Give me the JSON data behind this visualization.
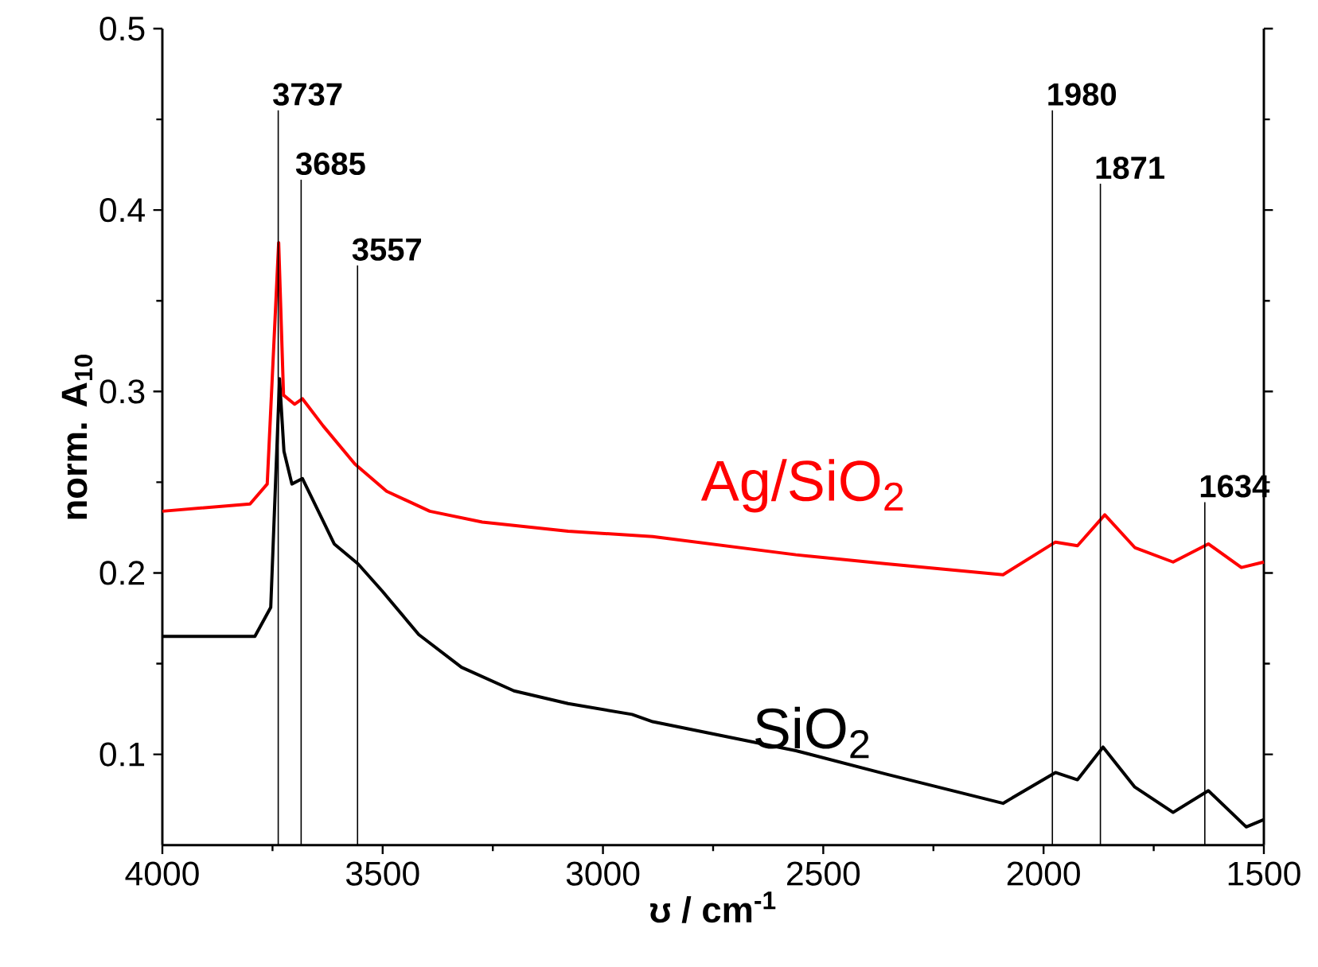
{
  "chart_data": {
    "type": "line",
    "xlabel": "**ʊ / cm$^{-1}$**",
    "ylabel": "**norm. A$_{10}$**",
    "xlim": [
      4000,
      1500
    ],
    "ylim": [
      0.05,
      0.5
    ],
    "xticks": [
      4000,
      3500,
      3000,
      2500,
      2000,
      1500
    ],
    "yticks": [
      0.1,
      0.2,
      0.3,
      0.4,
      0.5
    ],
    "marker": "none",
    "line_style": "solid",
    "series": [
      {
        "name": "SiO$_{2}$",
        "color": "#000000",
        "x": [
          4000,
          3790,
          3754,
          3734,
          3724,
          3706,
          3682,
          3658,
          3610,
          3556,
          3501,
          3418,
          3321,
          3202,
          3079,
          2934,
          2887,
          2562,
          2356,
          2092,
          1973,
          1923,
          1865,
          1793,
          1706,
          1626,
          1540,
          1500
        ],
        "values": [
          0.165,
          0.165,
          0.181,
          0.307,
          0.267,
          0.249,
          0.252,
          0.24,
          0.216,
          0.205,
          0.19,
          0.166,
          0.148,
          0.135,
          0.128,
          0.122,
          0.118,
          0.102,
          0.089,
          0.073,
          0.09,
          0.086,
          0.104,
          0.082,
          0.068,
          0.08,
          0.06,
          0.064
        ]
      },
      {
        "name": "Ag/SiO$_{2}$",
        "color": "#ff0000",
        "x": [
          4000,
          3801,
          3762,
          3736,
          3725,
          3700,
          3682,
          3635,
          3563,
          3491,
          3393,
          3274,
          3079,
          2887,
          2562,
          2356,
          2092,
          1973,
          1923,
          1861,
          1793,
          1706,
          1626,
          1551,
          1500
        ],
        "values": [
          0.234,
          0.238,
          0.249,
          0.382,
          0.298,
          0.293,
          0.296,
          0.281,
          0.26,
          0.245,
          0.234,
          0.228,
          0.223,
          0.22,
          0.21,
          0.205,
          0.199,
          0.217,
          0.215,
          0.232,
          0.214,
          0.206,
          0.216,
          0.203,
          0.206
        ]
      }
    ],
    "ref_lines": [
      {
        "axis": "x",
        "value": 3737,
        "label": "3737"
      },
      {
        "axis": "x",
        "value": 3685,
        "label": "3685"
      },
      {
        "axis": "x",
        "value": 3557,
        "label": "3557"
      },
      {
        "axis": "x",
        "value": 1980,
        "label": "1980"
      },
      {
        "axis": "x",
        "value": 1871,
        "label": "1871"
      },
      {
        "axis": "x",
        "value": 1634,
        "label": "1634"
      }
    ]
  }
}
